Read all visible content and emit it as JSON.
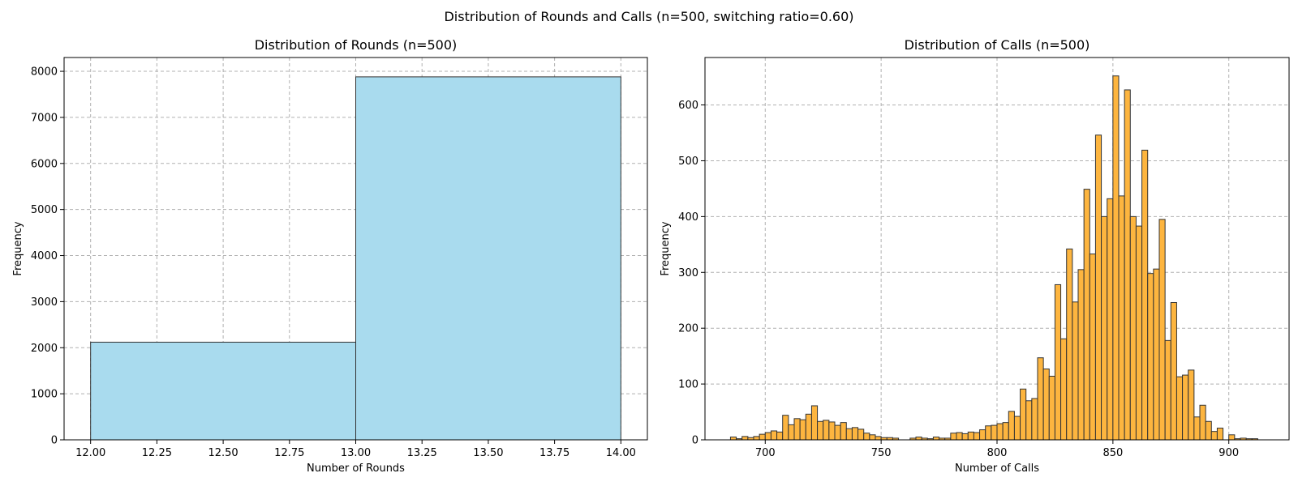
{
  "suptitle": "Distribution of Rounds and Calls (n=500, switching ratio=0.60)",
  "chart_data": [
    {
      "type": "bar",
      "subtype": "histogram",
      "title": "Distribution of Rounds (n=500)",
      "xlabel": "Number of Rounds",
      "ylabel": "Frequency",
      "xlim": [
        11.9,
        14.1
      ],
      "ylim": [
        0,
        8300
      ],
      "xticks": [
        12.0,
        12.25,
        12.5,
        12.75,
        13.0,
        13.25,
        13.5,
        13.75,
        14.0
      ],
      "xtick_labels": [
        "12.00",
        "12.25",
        "12.50",
        "12.75",
        "13.00",
        "13.25",
        "13.50",
        "13.75",
        "14.00"
      ],
      "yticks": [
        0,
        1000,
        2000,
        3000,
        4000,
        5000,
        6000,
        7000,
        8000
      ],
      "ytick_labels": [
        "0",
        "1000",
        "2000",
        "3000",
        "4000",
        "5000",
        "6000",
        "7000",
        "8000"
      ],
      "bin_edges": [
        12,
        13,
        14
      ],
      "values": [
        2120,
        7880
      ],
      "color": "#a9dbee",
      "edge_color": "#333333",
      "grid": true
    },
    {
      "type": "bar",
      "subtype": "histogram",
      "title": "Distribution of Calls (n=500)",
      "xlabel": "Number of Calls",
      "ylabel": "Frequency",
      "xlim": [
        674,
        926
      ],
      "ylim": [
        0,
        685
      ],
      "xticks": [
        700,
        750,
        800,
        850,
        900
      ],
      "xtick_labels": [
        "700",
        "750",
        "800",
        "850",
        "900"
      ],
      "yticks": [
        0,
        100,
        200,
        300,
        400,
        500,
        600
      ],
      "ytick_labels": [
        "0",
        "100",
        "200",
        "300",
        "400",
        "500",
        "600"
      ],
      "bin_start": 685,
      "bin_width": 2.5,
      "values": [
        5,
        2,
        6,
        4,
        6,
        10,
        13,
        16,
        14,
        44,
        27,
        38,
        36,
        46,
        61,
        33,
        35,
        32,
        26,
        31,
        20,
        22,
        19,
        12,
        9,
        6,
        4,
        4,
        3,
        0,
        0,
        3,
        5,
        3,
        2,
        5,
        3,
        3,
        12,
        13,
        11,
        14,
        13,
        18,
        25,
        26,
        29,
        31,
        51,
        42,
        91,
        70,
        74,
        147,
        127,
        114,
        278,
        181,
        342,
        247,
        305,
        449,
        333,
        546,
        400,
        432,
        652,
        437,
        627,
        400,
        383,
        519,
        298,
        306,
        395,
        178,
        246,
        113,
        116,
        125,
        41,
        62,
        33,
        15,
        21,
        0,
        9,
        2,
        3,
        2,
        2,
        0
      ],
      "color": "#fdb53f",
      "edge_color": "#333333",
      "grid": true
    }
  ]
}
